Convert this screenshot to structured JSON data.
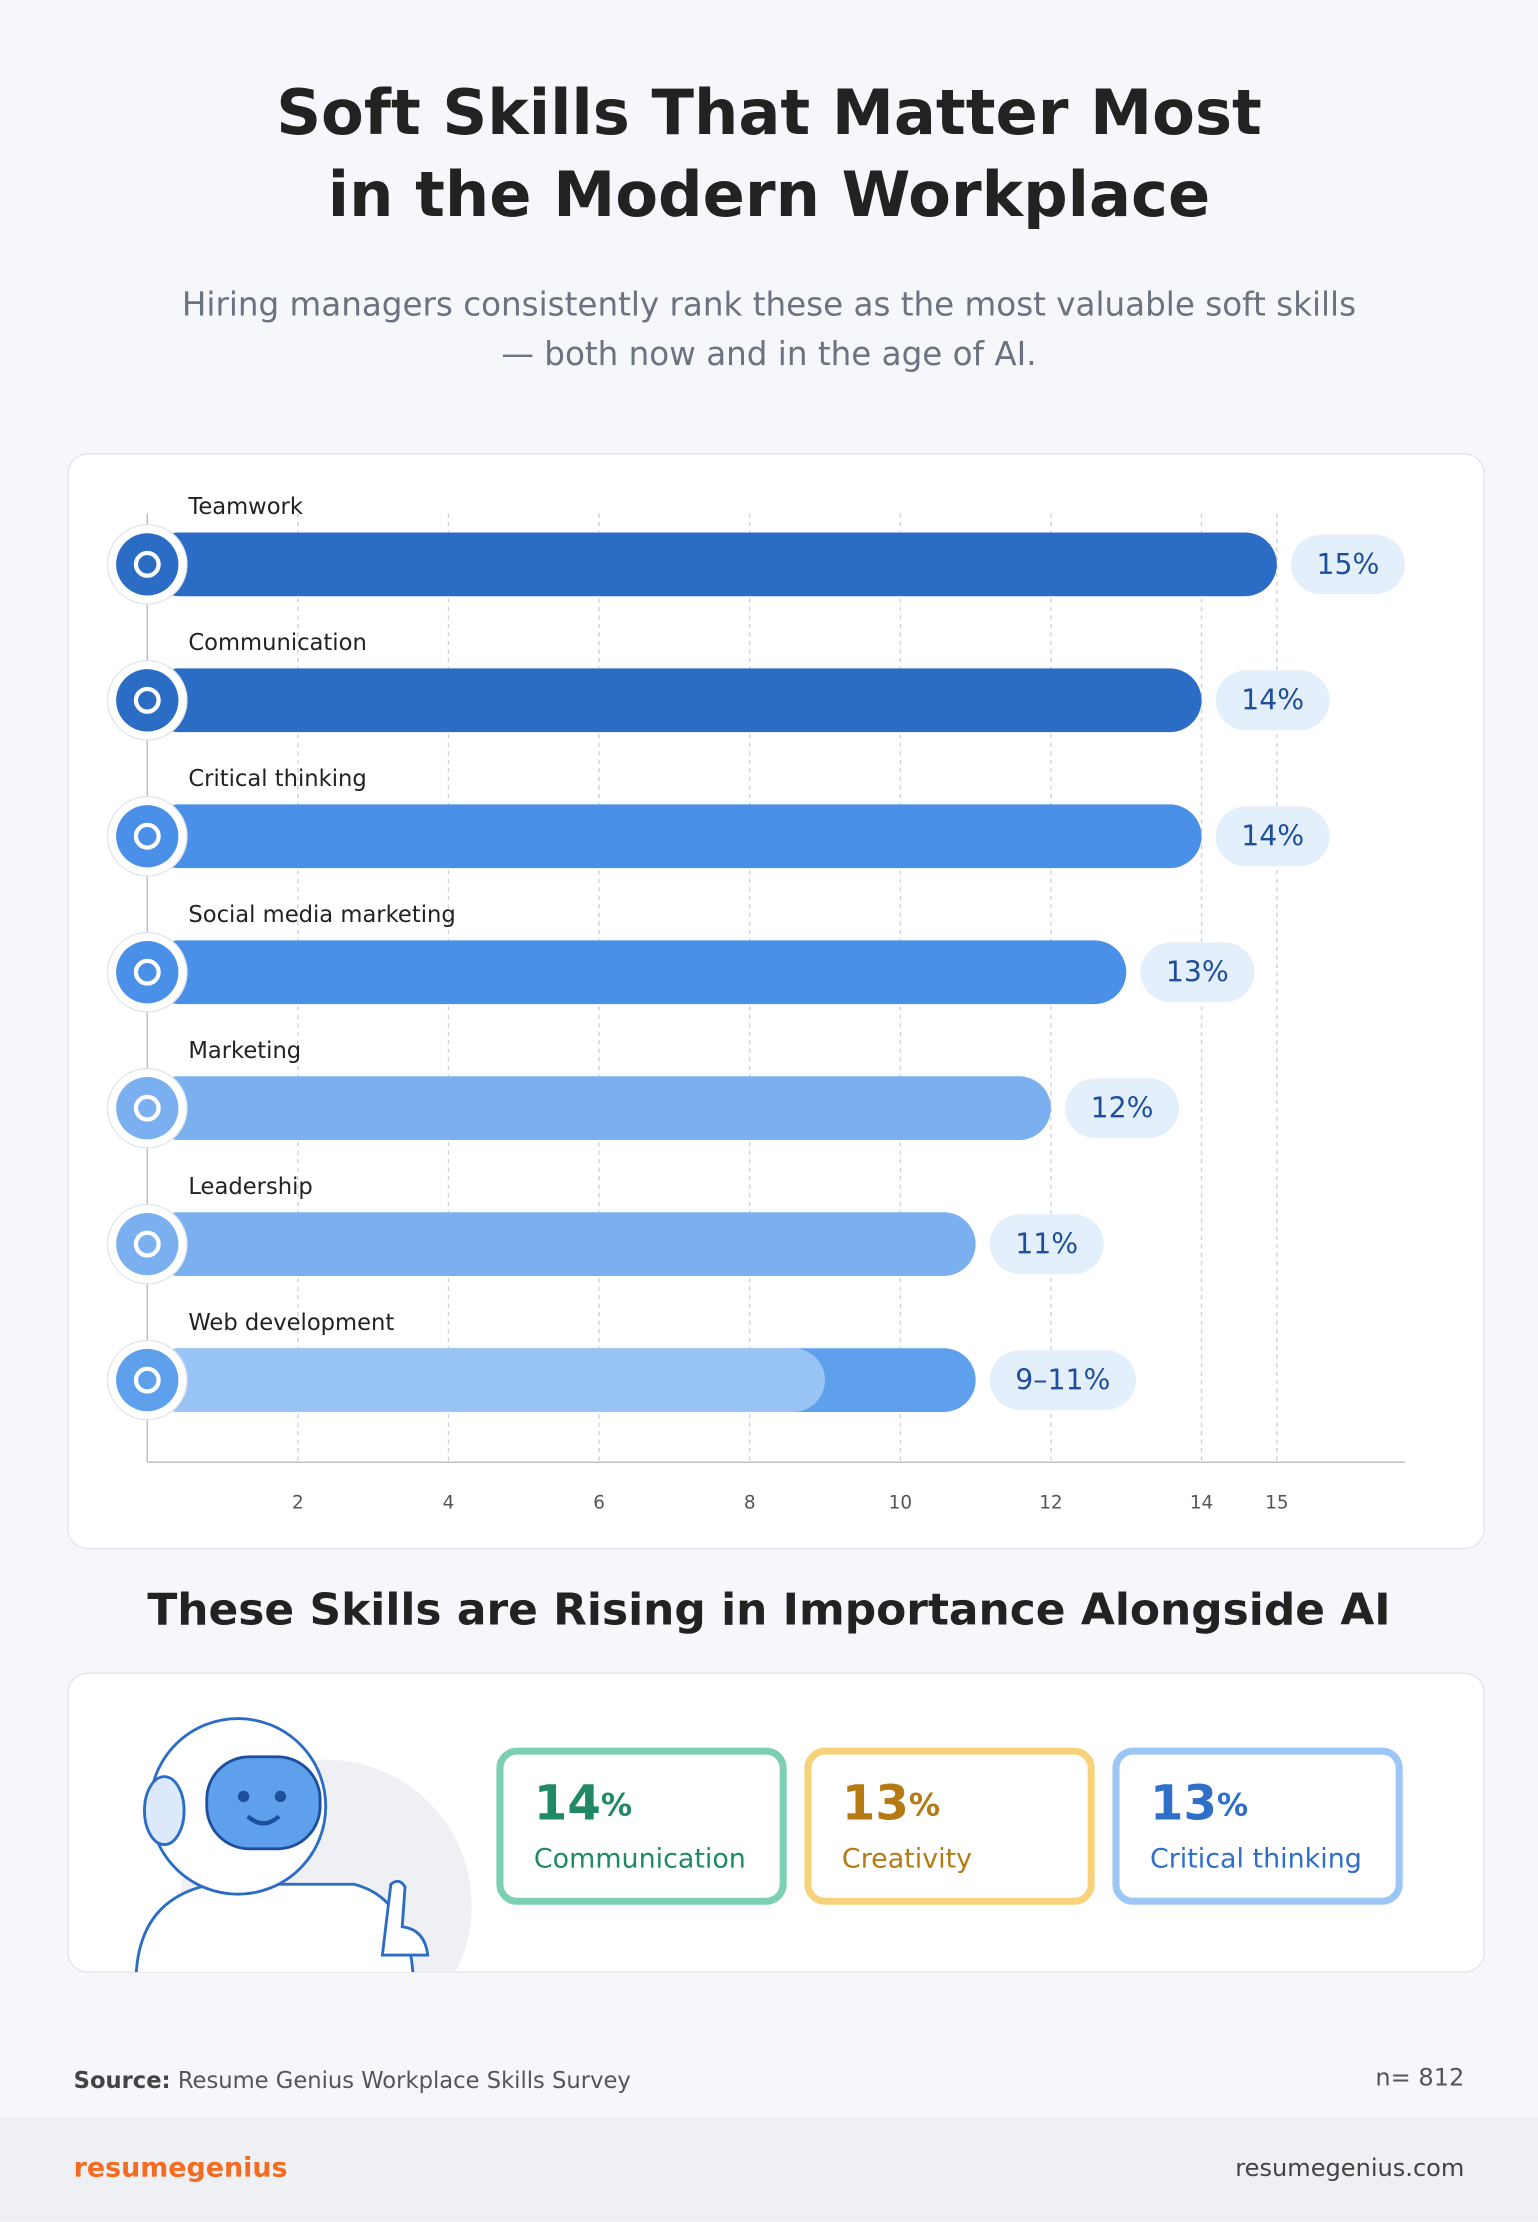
{
  "title": [
    "Soft Skills That Matter Most",
    "in the Modern Workplace"
  ],
  "subtitle": [
    "Hiring managers consistently rank these as the most valuable soft skills",
    "— both now and in the age of AI."
  ],
  "chart_data": {
    "type": "bar",
    "orientation": "horizontal",
    "categories": [
      "Teamwork",
      "Communication",
      "Critical thinking",
      "Social media marketing",
      "Marketing",
      "Leadership",
      "Web development"
    ],
    "values": [
      15,
      14,
      14,
      13,
      12,
      11,
      11
    ],
    "low_values": [
      null,
      null,
      null,
      null,
      null,
      null,
      9
    ],
    "value_labels": [
      "15%",
      "14%",
      "14%",
      "13%",
      "12%",
      "11%",
      "9–11%"
    ],
    "colors": [
      "#2b6cc4",
      "#2b6cc4",
      "#4a90e8",
      "#4a90e8",
      "#7ab0f0",
      "#7ab0f0",
      "#5ea0ec"
    ],
    "low_color": "#98c3f5",
    "xlim": [
      0,
      16.7
    ],
    "xticks": [
      2,
      4,
      6,
      8,
      10,
      12,
      14,
      15
    ],
    "grid": true
  },
  "section_title": "These Skills are Rising in Importance Alongside AI",
  "cards": [
    {
      "value": 14,
      "unit": "%",
      "label": "Communication",
      "color": "#1f8a63",
      "border": "#7ccfb3"
    },
    {
      "value": 13,
      "unit": "%",
      "label": "Creativity",
      "color": "#b67a14",
      "border": "#f7d27a"
    },
    {
      "value": 13,
      "unit": "%",
      "label": "Critical thinking",
      "color": "#2f6fc8",
      "border": "#9cc6f5"
    }
  ],
  "source_label": "Source:",
  "source": "Resume Genius Workplace Skills Survey",
  "sample": "n= 812",
  "brand": "resumegenius",
  "website": "resumegenius.com"
}
